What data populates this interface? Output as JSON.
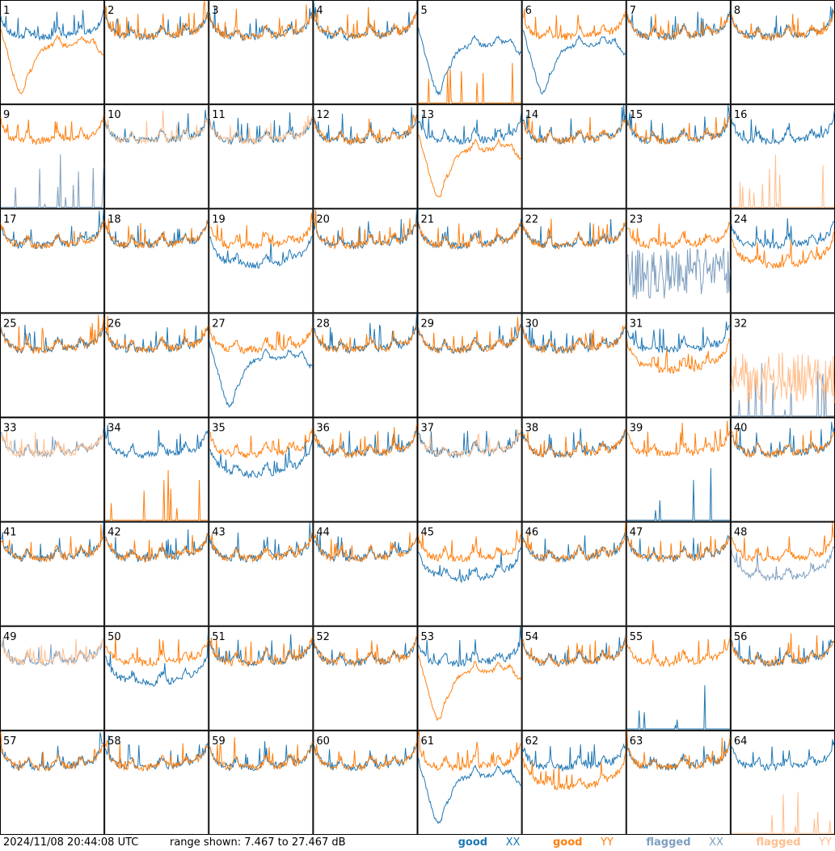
{
  "footer": {
    "timestamp": "2024/11/08 20:44:08 UTC",
    "range_text": "range shown: 7.467 to 27.467 dB"
  },
  "legend": {
    "good_xx": "good",
    "good_yy": "good",
    "flagged_xx": "flagged",
    "flagged_yy": "flagged",
    "xx": "XX",
    "yy": "YY"
  },
  "colors": {
    "good_xx": "#1f77b4",
    "good_yy": "#ff7f0e",
    "flagged_xx": "#7f9fbf",
    "flagged_yy": "#ffbf8f",
    "grid": "#000000"
  },
  "chart_data": {
    "type": "line",
    "layout": "small-multiples",
    "rows": 8,
    "cols": 8,
    "ylim": [
      7.467,
      27.467
    ],
    "x_points": 120,
    "panels": [
      {
        "id": "1",
        "xx": "normal",
        "yy": "dip"
      },
      {
        "id": "2",
        "xx": "normal",
        "yy": "normal"
      },
      {
        "id": "3",
        "xx": "normal",
        "yy": "normal"
      },
      {
        "id": "4",
        "xx": "normal",
        "yy": "normal"
      },
      {
        "id": "5",
        "xx": "dip",
        "yy": "spikes"
      },
      {
        "id": "6",
        "xx": "dip",
        "yy": "normal"
      },
      {
        "id": "7",
        "xx": "normal",
        "yy": "normal"
      },
      {
        "id": "8",
        "xx": "normal",
        "yy": "normal"
      },
      {
        "id": "9",
        "xx": "flag-spikes",
        "yy": "normal"
      },
      {
        "id": "10",
        "xx": "normal",
        "yy": "flag-normal"
      },
      {
        "id": "11",
        "xx": "normal",
        "yy": "flag-normal"
      },
      {
        "id": "12",
        "xx": "normal",
        "yy": "normal"
      },
      {
        "id": "13",
        "xx": "normal",
        "yy": "dip"
      },
      {
        "id": "14",
        "xx": "normal",
        "yy": "normal"
      },
      {
        "id": "15",
        "xx": "normal",
        "yy": "normal"
      },
      {
        "id": "16",
        "xx": "normal",
        "yy": "flag-spikes"
      },
      {
        "id": "17",
        "xx": "normal",
        "yy": "normal"
      },
      {
        "id": "18",
        "xx": "normal",
        "yy": "normal"
      },
      {
        "id": "19",
        "xx": "low",
        "yy": "normal"
      },
      {
        "id": "20",
        "xx": "normal",
        "yy": "normal"
      },
      {
        "id": "21",
        "xx": "normal",
        "yy": "normal"
      },
      {
        "id": "22",
        "xx": "normal",
        "yy": "normal"
      },
      {
        "id": "23",
        "xx": "flag-noise",
        "yy": "normal"
      },
      {
        "id": "24",
        "xx": "normal",
        "yy": "low"
      },
      {
        "id": "25",
        "xx": "normal",
        "yy": "normal"
      },
      {
        "id": "26",
        "xx": "normal",
        "yy": "normal"
      },
      {
        "id": "27",
        "xx": "dip",
        "yy": "normal"
      },
      {
        "id": "28",
        "xx": "normal",
        "yy": "normal"
      },
      {
        "id": "29",
        "xx": "normal",
        "yy": "normal"
      },
      {
        "id": "30",
        "xx": "normal",
        "yy": "normal"
      },
      {
        "id": "31",
        "xx": "normal",
        "yy": "low"
      },
      {
        "id": "32",
        "xx": "flag-spikes",
        "yy": "flag-noise"
      },
      {
        "id": "33",
        "xx": "flag-normal",
        "yy": "flag-normal"
      },
      {
        "id": "34",
        "xx": "normal",
        "yy": "spikes"
      },
      {
        "id": "35",
        "xx": "low",
        "yy": "normal"
      },
      {
        "id": "36",
        "xx": "normal",
        "yy": "normal"
      },
      {
        "id": "37",
        "xx": "normal",
        "yy": "flag-normal"
      },
      {
        "id": "38",
        "xx": "normal",
        "yy": "normal"
      },
      {
        "id": "39",
        "xx": "spikes",
        "yy": "normal"
      },
      {
        "id": "40",
        "xx": "normal",
        "yy": "normal"
      },
      {
        "id": "41",
        "xx": "normal",
        "yy": "normal"
      },
      {
        "id": "42",
        "xx": "normal",
        "yy": "normal"
      },
      {
        "id": "43",
        "xx": "normal",
        "yy": "normal"
      },
      {
        "id": "44",
        "xx": "normal",
        "yy": "normal"
      },
      {
        "id": "45",
        "xx": "low",
        "yy": "normal"
      },
      {
        "id": "46",
        "xx": "normal",
        "yy": "normal"
      },
      {
        "id": "47",
        "xx": "normal",
        "yy": "normal"
      },
      {
        "id": "48",
        "xx": "flag-low",
        "yy": "normal"
      },
      {
        "id": "49",
        "xx": "flag-normal",
        "yy": "flag-normal"
      },
      {
        "id": "50",
        "xx": "low",
        "yy": "normal"
      },
      {
        "id": "51",
        "xx": "normal",
        "yy": "normal"
      },
      {
        "id": "52",
        "xx": "normal",
        "yy": "normal"
      },
      {
        "id": "53",
        "xx": "normal",
        "yy": "dip"
      },
      {
        "id": "54",
        "xx": "normal",
        "yy": "normal"
      },
      {
        "id": "55",
        "xx": "spikes",
        "yy": "normal"
      },
      {
        "id": "56",
        "xx": "normal",
        "yy": "normal"
      },
      {
        "id": "57",
        "xx": "normal",
        "yy": "normal"
      },
      {
        "id": "58",
        "xx": "normal",
        "yy": "normal"
      },
      {
        "id": "59",
        "xx": "normal",
        "yy": "normal"
      },
      {
        "id": "60",
        "xx": "normal",
        "yy": "normal"
      },
      {
        "id": "61",
        "xx": "dip",
        "yy": "normal"
      },
      {
        "id": "62",
        "xx": "normal",
        "yy": "low"
      },
      {
        "id": "63",
        "xx": "normal",
        "yy": "normal"
      },
      {
        "id": "64",
        "xx": "normal",
        "yy": "flag-spikes"
      }
    ]
  }
}
